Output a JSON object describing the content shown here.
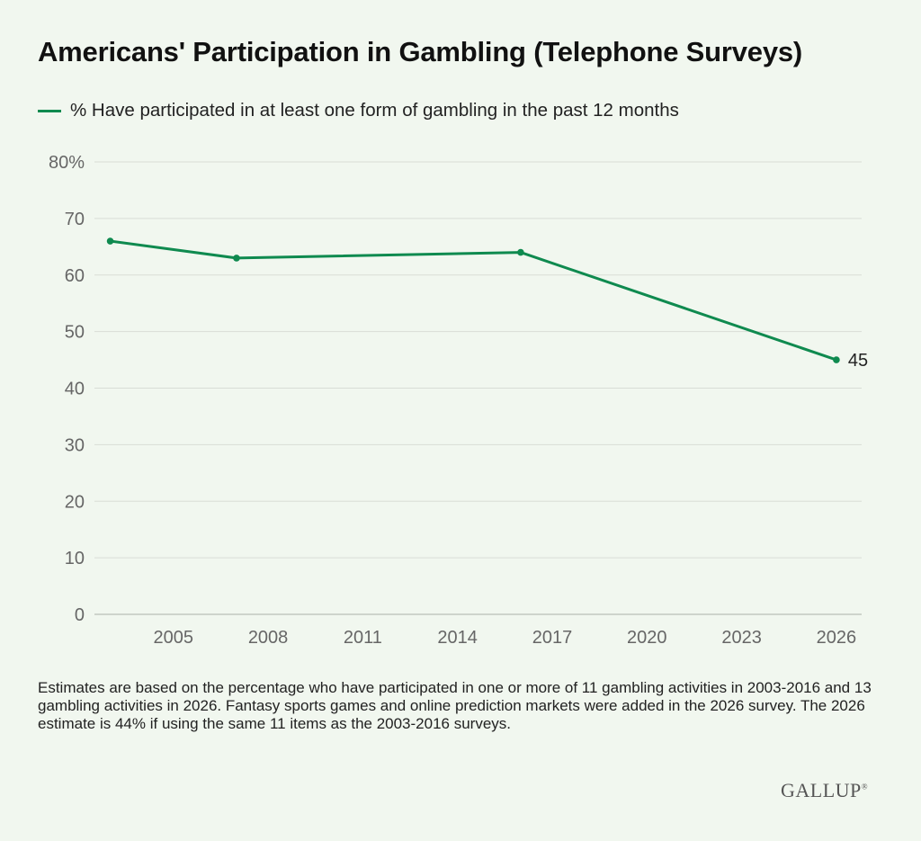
{
  "chart_data": {
    "type": "line",
    "title": "Americans' Participation in Gambling (Telephone Surveys)",
    "series": [
      {
        "name": "% Have participated in at least one form of gambling in the past 12 months",
        "color": "#0f8a4f",
        "x": [
          2003,
          2007,
          2016,
          2026
        ],
        "values": [
          66,
          63,
          64,
          45
        ]
      }
    ],
    "end_label": "45",
    "xlim": [
      2002.5,
      2026.8
    ],
    "ylim": [
      0,
      80
    ],
    "x_ticks": [
      2005,
      2008,
      2011,
      2014,
      2017,
      2020,
      2023,
      2026
    ],
    "x_tick_labels": [
      "2005",
      "2008",
      "2011",
      "2014",
      "2017",
      "2020",
      "2023",
      "2026"
    ],
    "y_ticks": [
      0,
      10,
      20,
      30,
      40,
      50,
      60,
      70,
      80
    ],
    "y_tick_labels": [
      "0",
      "10",
      "20",
      "30",
      "40",
      "50",
      "60",
      "70",
      "80%"
    ],
    "grid": true,
    "legend_position": "top-left"
  },
  "footnote": "Estimates are based on the percentage who have participated in one or more of 11 gambling activities in 2003-2016 and 13 gambling activities in 2026. Fantasy sports games and online prediction markets were added in the 2026 survey. The 2026 estimate is 44% if using the same 11 items as the 2003-2016 surveys.",
  "logo_text": "GALLUP",
  "logo_mark": "®",
  "colors": {
    "background": "#f1f7ef",
    "series": "#0f8a4f",
    "grid": "#d9ddd6"
  }
}
